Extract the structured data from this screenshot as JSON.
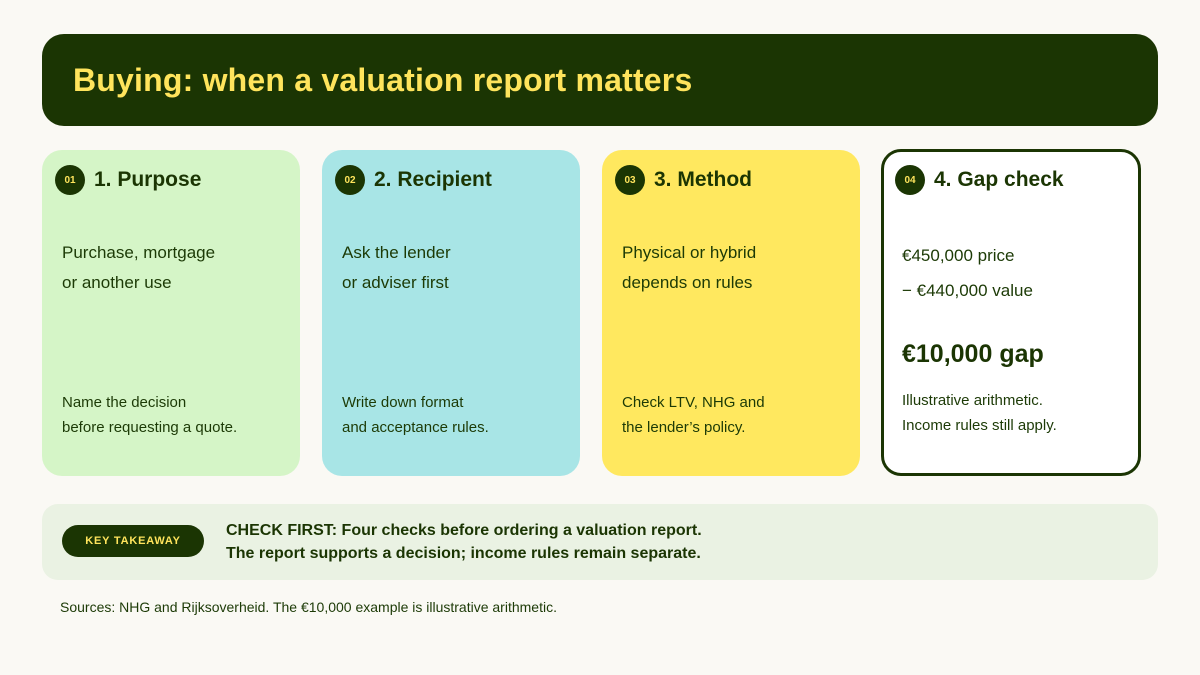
{
  "header": {
    "title": "Buying: when a valuation report matters"
  },
  "cards": [
    {
      "badge": "01",
      "title": "1. Purpose",
      "body": [
        "Purchase, mortgage",
        "or another use"
      ],
      "foot": [
        "Name the decision",
        "before requesting a quote."
      ]
    },
    {
      "badge": "02",
      "title": "2. Recipient",
      "body": [
        "Ask the lender",
        "or adviser first"
      ],
      "foot": [
        "Write down format",
        "and acceptance rules."
      ]
    },
    {
      "badge": "03",
      "title": "3. Method",
      "body": [
        "Physical or hybrid",
        "depends on rules"
      ],
      "foot": [
        "Check LTV, NHG and",
        "the lender’s policy."
      ]
    },
    {
      "badge": "04",
      "title": "4. Gap check",
      "body": [
        "€450,000 price",
        "− €440,000 value"
      ],
      "result": "€10,000 gap",
      "foot": [
        "Illustrative arithmetic.",
        "Income rules still apply."
      ]
    }
  ],
  "takeaway": {
    "badge": "KEY TAKEAWAY",
    "line1": "CHECK FIRST: Four checks before ordering a valuation report.",
    "line2": "The report supports a decision; income rules remain separate."
  },
  "sources": "Sources: NHG and Rijksoverheid. The €10,000 example is illustrative arithmetic.",
  "colors": {
    "header_bg": "#1b3503",
    "header_text": "#ffe45c",
    "card1": "#d5f5c7",
    "card2": "#a8e5e6",
    "card3": "#ffe85f",
    "card4": "#ffffff"
  }
}
